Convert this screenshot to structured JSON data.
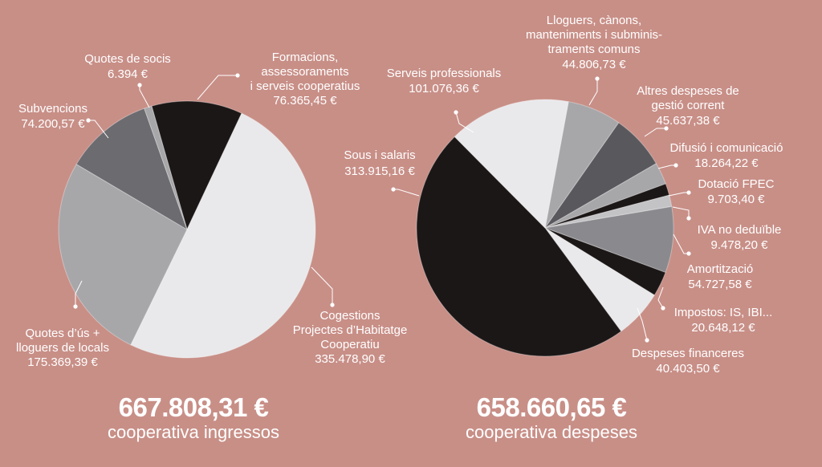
{
  "colors": {
    "background": "#c88f87",
    "black": "#1c1717",
    "light": "#e9e9eb",
    "mid_grey": "#a7a7aa",
    "dark_grey": "#6b6b70",
    "darker_grey": "#59585d",
    "pale_grey": "#c3c3c6",
    "label": "#ffffff"
  },
  "totals": {
    "income_amount": "667.808,31 €",
    "income_caption": "cooperativa ingressos",
    "expenses_amount": "658.660,65 €",
    "expenses_caption": "cooperativa despeses"
  },
  "chart_data": [
    {
      "type": "pie",
      "slices": [
        {
          "label": [
            "Formacions,",
            "assessoraments",
            "i serveis cooperatius"
          ],
          "value_text": "76.365,45 €",
          "value": 76365.45,
          "color": "#1c1717"
        },
        {
          "label": [
            "Cogestions",
            "Projectes d’Habitatge",
            "Cooperatiu"
          ],
          "value_text": "335.478,90 €",
          "value": 335478.9,
          "color": "#e9e9eb"
        },
        {
          "label": [
            "Quotes d’ús +",
            "lloguers de locals"
          ],
          "value_text": "175.369,39 €",
          "value": 175369.39,
          "color": "#a7a7aa"
        },
        {
          "label": [
            "Subvencions"
          ],
          "value_text": "74.200,57 €",
          "value": 74200.57,
          "color": "#6b6b70"
        },
        {
          "label": [
            "Quotes de socis"
          ],
          "value_text": "6.394 €",
          "value": 6394,
          "color": "#a7a7aa"
        }
      ]
    },
    {
      "type": "pie",
      "slices": [
        {
          "label": [
            "Lloguers, cànons,",
            "manteniments i subminis-",
            "traments comuns"
          ],
          "value_text": "44.806,73 €",
          "value": 44806.73,
          "color": "#a7a7aa"
        },
        {
          "label": [
            "Altres despeses de",
            "gestió corrent"
          ],
          "value_text": "45.637,38 €",
          "value": 45637.38,
          "color": "#59585d"
        },
        {
          "label": [
            "Difusió i comunicació"
          ],
          "value_text": "18.264,22 €",
          "value": 18264.22,
          "color": "#a7a7aa"
        },
        {
          "label": [
            "Dotació FPEC"
          ],
          "value_text": "9.703,40 €",
          "value": 9703.4,
          "color": "#1c1717"
        },
        {
          "label": [
            "IVA no deduïble"
          ],
          "value_text": "9.478,20 €",
          "value": 9478.2,
          "color": "#c3c3c6"
        },
        {
          "label": [
            "Amortització"
          ],
          "value_text": "54.727,58 €",
          "value": 54727.58,
          "color": "#8a8a8e"
        },
        {
          "label": [
            "Impostos: IS, IBI..."
          ],
          "value_text": "20.648,12 €",
          "value": 20648.12,
          "color": "#1c1717"
        },
        {
          "label": [
            "Despeses financeres"
          ],
          "value_text": "40.403,50 €",
          "value": 40403.5,
          "color": "#e9e9eb"
        },
        {
          "label": [
            "Sous i salaris"
          ],
          "value_text": "313.915,16 €",
          "value": 313915.16,
          "color": "#1c1717"
        },
        {
          "label": [
            "Serveis professionals"
          ],
          "value_text": "101.076,36 €",
          "value": 101076.36,
          "color": "#e9e9eb"
        }
      ]
    }
  ]
}
